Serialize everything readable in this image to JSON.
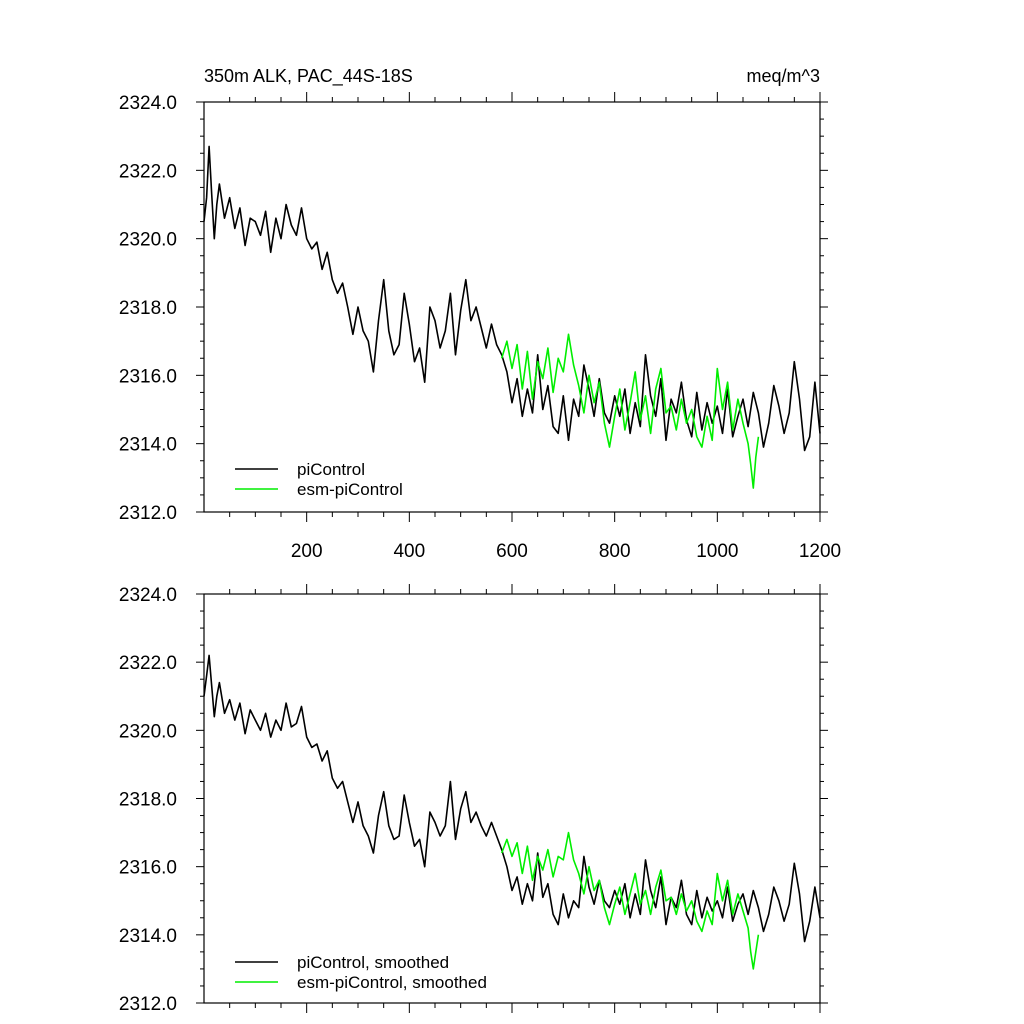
{
  "chart_data": [
    {
      "type": "line",
      "title_left": "350m ALK, PAC_44S-18S",
      "title_right": "meq/m^3",
      "xlim": [
        0,
        1200
      ],
      "ylim": [
        2312,
        2324
      ],
      "x_ticks": [
        200,
        400,
        600,
        800,
        1000,
        1200
      ],
      "x_tick_labels": [
        "200",
        "400",
        "600",
        "800",
        "1000",
        "1200"
      ],
      "y_ticks": [
        2312,
        2314,
        2316,
        2318,
        2320,
        2322,
        2324
      ],
      "y_tick_labels": [
        "2312.0",
        "2314.0",
        "2316.0",
        "2318.0",
        "2320.0",
        "2322.0",
        "2324.0"
      ],
      "legend_placement": "bottom-left",
      "series": [
        {
          "name": "piControl",
          "color": "#000000",
          "x": [
            0,
            5,
            10,
            15,
            20,
            25,
            30,
            40,
            50,
            60,
            70,
            80,
            90,
            100,
            110,
            120,
            130,
            140,
            150,
            160,
            170,
            180,
            190,
            200,
            210,
            220,
            230,
            240,
            250,
            260,
            270,
            280,
            290,
            300,
            310,
            320,
            330,
            340,
            350,
            360,
            370,
            380,
            390,
            400,
            410,
            420,
            430,
            440,
            450,
            460,
            470,
            480,
            490,
            500,
            510,
            520,
            530,
            540,
            550,
            560,
            570,
            580,
            590,
            600,
            610,
            620,
            630,
            640,
            650,
            660,
            670,
            680,
            690,
            700,
            710,
            720,
            730,
            740,
            750,
            760,
            770,
            780,
            790,
            800,
            810,
            820,
            830,
            840,
            850,
            860,
            870,
            880,
            890,
            900,
            910,
            920,
            930,
            940,
            950,
            960,
            970,
            980,
            990,
            1000,
            1010,
            1020,
            1030,
            1040,
            1050,
            1060,
            1070,
            1080,
            1090,
            1100,
            1110,
            1120,
            1130,
            1140,
            1150,
            1160,
            1170,
            1180,
            1190,
            1200
          ],
          "values": [
            2320.5,
            2321.2,
            2322.7,
            2321.3,
            2320.0,
            2321.0,
            2321.6,
            2320.6,
            2321.2,
            2320.3,
            2320.9,
            2319.8,
            2320.6,
            2320.5,
            2320.1,
            2320.8,
            2319.6,
            2320.6,
            2320.0,
            2321.0,
            2320.4,
            2320.1,
            2320.9,
            2320.0,
            2319.7,
            2319.9,
            2319.1,
            2319.6,
            2318.8,
            2318.4,
            2318.7,
            2318.0,
            2317.2,
            2318.0,
            2317.3,
            2317.0,
            2316.1,
            2317.6,
            2318.8,
            2317.3,
            2316.6,
            2316.9,
            2318.4,
            2317.5,
            2316.4,
            2316.8,
            2315.8,
            2318.0,
            2317.6,
            2316.8,
            2317.3,
            2318.4,
            2316.6,
            2317.9,
            2318.8,
            2317.6,
            2318.0,
            2317.4,
            2316.8,
            2317.5,
            2316.9,
            2316.6,
            2316.1,
            2315.2,
            2315.9,
            2314.8,
            2315.6,
            2314.9,
            2316.6,
            2315.0,
            2315.7,
            2314.5,
            2314.3,
            2315.4,
            2314.1,
            2315.3,
            2314.8,
            2316.3,
            2315.6,
            2314.8,
            2315.9,
            2314.9,
            2314.6,
            2315.4,
            2314.8,
            2315.6,
            2314.3,
            2315.2,
            2314.5,
            2316.6,
            2315.4,
            2314.8,
            2315.9,
            2314.1,
            2315.3,
            2314.9,
            2315.8,
            2314.7,
            2314.2,
            2315.5,
            2314.4,
            2315.2,
            2314.6,
            2315.1,
            2314.3,
            2315.6,
            2314.2,
            2314.8,
            2315.3,
            2314.5,
            2315.5,
            2314.9,
            2313.9,
            2314.6,
            2315.7,
            2315.1,
            2314.3,
            2314.9,
            2316.4,
            2315.3,
            2313.8,
            2314.2,
            2315.8,
            2314.3
          ]
        },
        {
          "name": "esm-piControl",
          "color": "#00ee00",
          "x": [
            580,
            590,
            600,
            610,
            620,
            630,
            640,
            650,
            660,
            670,
            680,
            690,
            700,
            710,
            720,
            730,
            740,
            750,
            760,
            770,
            780,
            790,
            800,
            810,
            820,
            830,
            840,
            850,
            860,
            870,
            880,
            890,
            900,
            910,
            920,
            930,
            940,
            950,
            960,
            970,
            980,
            990,
            1000,
            1010,
            1020,
            1030,
            1040,
            1050,
            1060,
            1065,
            1070,
            1075,
            1080
          ],
          "values": [
            2316.5,
            2317.0,
            2316.2,
            2316.9,
            2315.6,
            2316.7,
            2315.3,
            2316.4,
            2315.9,
            2316.8,
            2315.5,
            2316.5,
            2316.1,
            2317.2,
            2316.3,
            2315.7,
            2314.9,
            2316.0,
            2315.2,
            2315.8,
            2314.6,
            2313.9,
            2314.8,
            2315.6,
            2314.4,
            2315.2,
            2316.1,
            2314.7,
            2315.4,
            2314.3,
            2315.6,
            2316.2,
            2314.9,
            2315.1,
            2314.4,
            2315.3,
            2314.6,
            2315.0,
            2314.2,
            2313.9,
            2314.8,
            2314.1,
            2316.2,
            2315.0,
            2315.8,
            2314.4,
            2315.3,
            2314.6,
            2314.0,
            2313.4,
            2312.7,
            2313.6,
            2314.2
          ]
        }
      ]
    },
    {
      "type": "line",
      "xlim": [
        0,
        1200
      ],
      "ylim": [
        2312,
        2324
      ],
      "x_ticks": [
        200,
        400,
        600,
        800,
        1000,
        1200
      ],
      "y_ticks": [
        2312,
        2314,
        2316,
        2318,
        2320,
        2322,
        2324
      ],
      "y_tick_labels": [
        "2312.0",
        "2314.0",
        "2316.0",
        "2318.0",
        "2320.0",
        "2322.0",
        "2324.0"
      ],
      "legend_placement": "bottom-left",
      "series": [
        {
          "name": "piControl, smoothed",
          "color": "#000000",
          "x": [
            0,
            5,
            10,
            15,
            20,
            25,
            30,
            40,
            50,
            60,
            70,
            80,
            90,
            100,
            110,
            120,
            130,
            140,
            150,
            160,
            170,
            180,
            190,
            200,
            210,
            220,
            230,
            240,
            250,
            260,
            270,
            280,
            290,
            300,
            310,
            320,
            330,
            340,
            350,
            360,
            370,
            380,
            390,
            400,
            410,
            420,
            430,
            440,
            450,
            460,
            470,
            480,
            490,
            500,
            510,
            520,
            530,
            540,
            550,
            560,
            570,
            580,
            590,
            600,
            610,
            620,
            630,
            640,
            650,
            660,
            670,
            680,
            690,
            700,
            710,
            720,
            730,
            740,
            750,
            760,
            770,
            780,
            790,
            800,
            810,
            820,
            830,
            840,
            850,
            860,
            870,
            880,
            890,
            900,
            910,
            920,
            930,
            940,
            950,
            960,
            970,
            980,
            990,
            1000,
            1010,
            1020,
            1030,
            1040,
            1050,
            1060,
            1070,
            1080,
            1090,
            1100,
            1110,
            1120,
            1130,
            1140,
            1150,
            1160,
            1170,
            1180,
            1190,
            1200
          ],
          "values": [
            2321.0,
            2321.6,
            2322.2,
            2321.3,
            2320.4,
            2321.0,
            2321.4,
            2320.5,
            2320.9,
            2320.3,
            2320.8,
            2319.9,
            2320.6,
            2320.3,
            2320.0,
            2320.5,
            2319.8,
            2320.3,
            2320.0,
            2320.8,
            2320.1,
            2320.2,
            2320.7,
            2319.8,
            2319.5,
            2319.6,
            2319.1,
            2319.4,
            2318.6,
            2318.3,
            2318.5,
            2317.9,
            2317.3,
            2317.9,
            2317.2,
            2316.9,
            2316.4,
            2317.5,
            2318.2,
            2317.2,
            2316.8,
            2316.9,
            2318.1,
            2317.3,
            2316.6,
            2316.8,
            2316.0,
            2317.6,
            2317.3,
            2316.9,
            2317.2,
            2318.5,
            2316.8,
            2317.7,
            2318.2,
            2317.3,
            2317.6,
            2317.2,
            2316.9,
            2317.3,
            2316.9,
            2316.5,
            2316.0,
            2315.3,
            2315.7,
            2314.9,
            2315.5,
            2315.0,
            2316.4,
            2315.1,
            2315.5,
            2314.6,
            2314.3,
            2315.2,
            2314.5,
            2315.0,
            2314.8,
            2316.3,
            2315.4,
            2314.9,
            2315.6,
            2315.0,
            2314.8,
            2315.3,
            2314.9,
            2315.5,
            2314.5,
            2315.2,
            2314.6,
            2316.2,
            2315.3,
            2314.8,
            2315.7,
            2314.3,
            2315.1,
            2314.8,
            2315.6,
            2314.6,
            2314.3,
            2315.3,
            2314.5,
            2315.1,
            2314.7,
            2315.0,
            2314.5,
            2315.4,
            2314.4,
            2314.9,
            2315.2,
            2314.6,
            2315.3,
            2314.8,
            2314.1,
            2314.6,
            2315.4,
            2315.0,
            2314.4,
            2314.9,
            2316.1,
            2315.2,
            2313.8,
            2314.4,
            2315.4,
            2314.5
          ]
        },
        {
          "name": "esm-piControl, smoothed",
          "color": "#00ee00",
          "x": [
            580,
            590,
            600,
            610,
            620,
            630,
            640,
            650,
            660,
            670,
            680,
            690,
            700,
            710,
            720,
            730,
            740,
            750,
            760,
            770,
            780,
            790,
            800,
            810,
            820,
            830,
            840,
            850,
            860,
            870,
            880,
            890,
            900,
            910,
            920,
            930,
            940,
            950,
            960,
            970,
            980,
            990,
            1000,
            1010,
            1020,
            1030,
            1040,
            1050,
            1060,
            1065,
            1070,
            1075,
            1080
          ],
          "values": [
            2316.4,
            2316.8,
            2316.3,
            2316.7,
            2315.8,
            2316.6,
            2315.6,
            2316.3,
            2315.9,
            2316.5,
            2315.7,
            2316.3,
            2316.2,
            2317.0,
            2316.2,
            2315.8,
            2315.2,
            2316.0,
            2315.3,
            2315.6,
            2314.8,
            2314.3,
            2314.9,
            2315.4,
            2314.6,
            2315.2,
            2315.8,
            2314.9,
            2315.3,
            2314.6,
            2315.4,
            2315.9,
            2315.0,
            2315.1,
            2314.6,
            2315.2,
            2314.7,
            2315.0,
            2314.4,
            2314.1,
            2314.7,
            2314.3,
            2315.8,
            2315.0,
            2315.6,
            2314.6,
            2315.2,
            2314.7,
            2314.2,
            2313.5,
            2313.0,
            2313.5,
            2314.0
          ]
        }
      ]
    }
  ]
}
